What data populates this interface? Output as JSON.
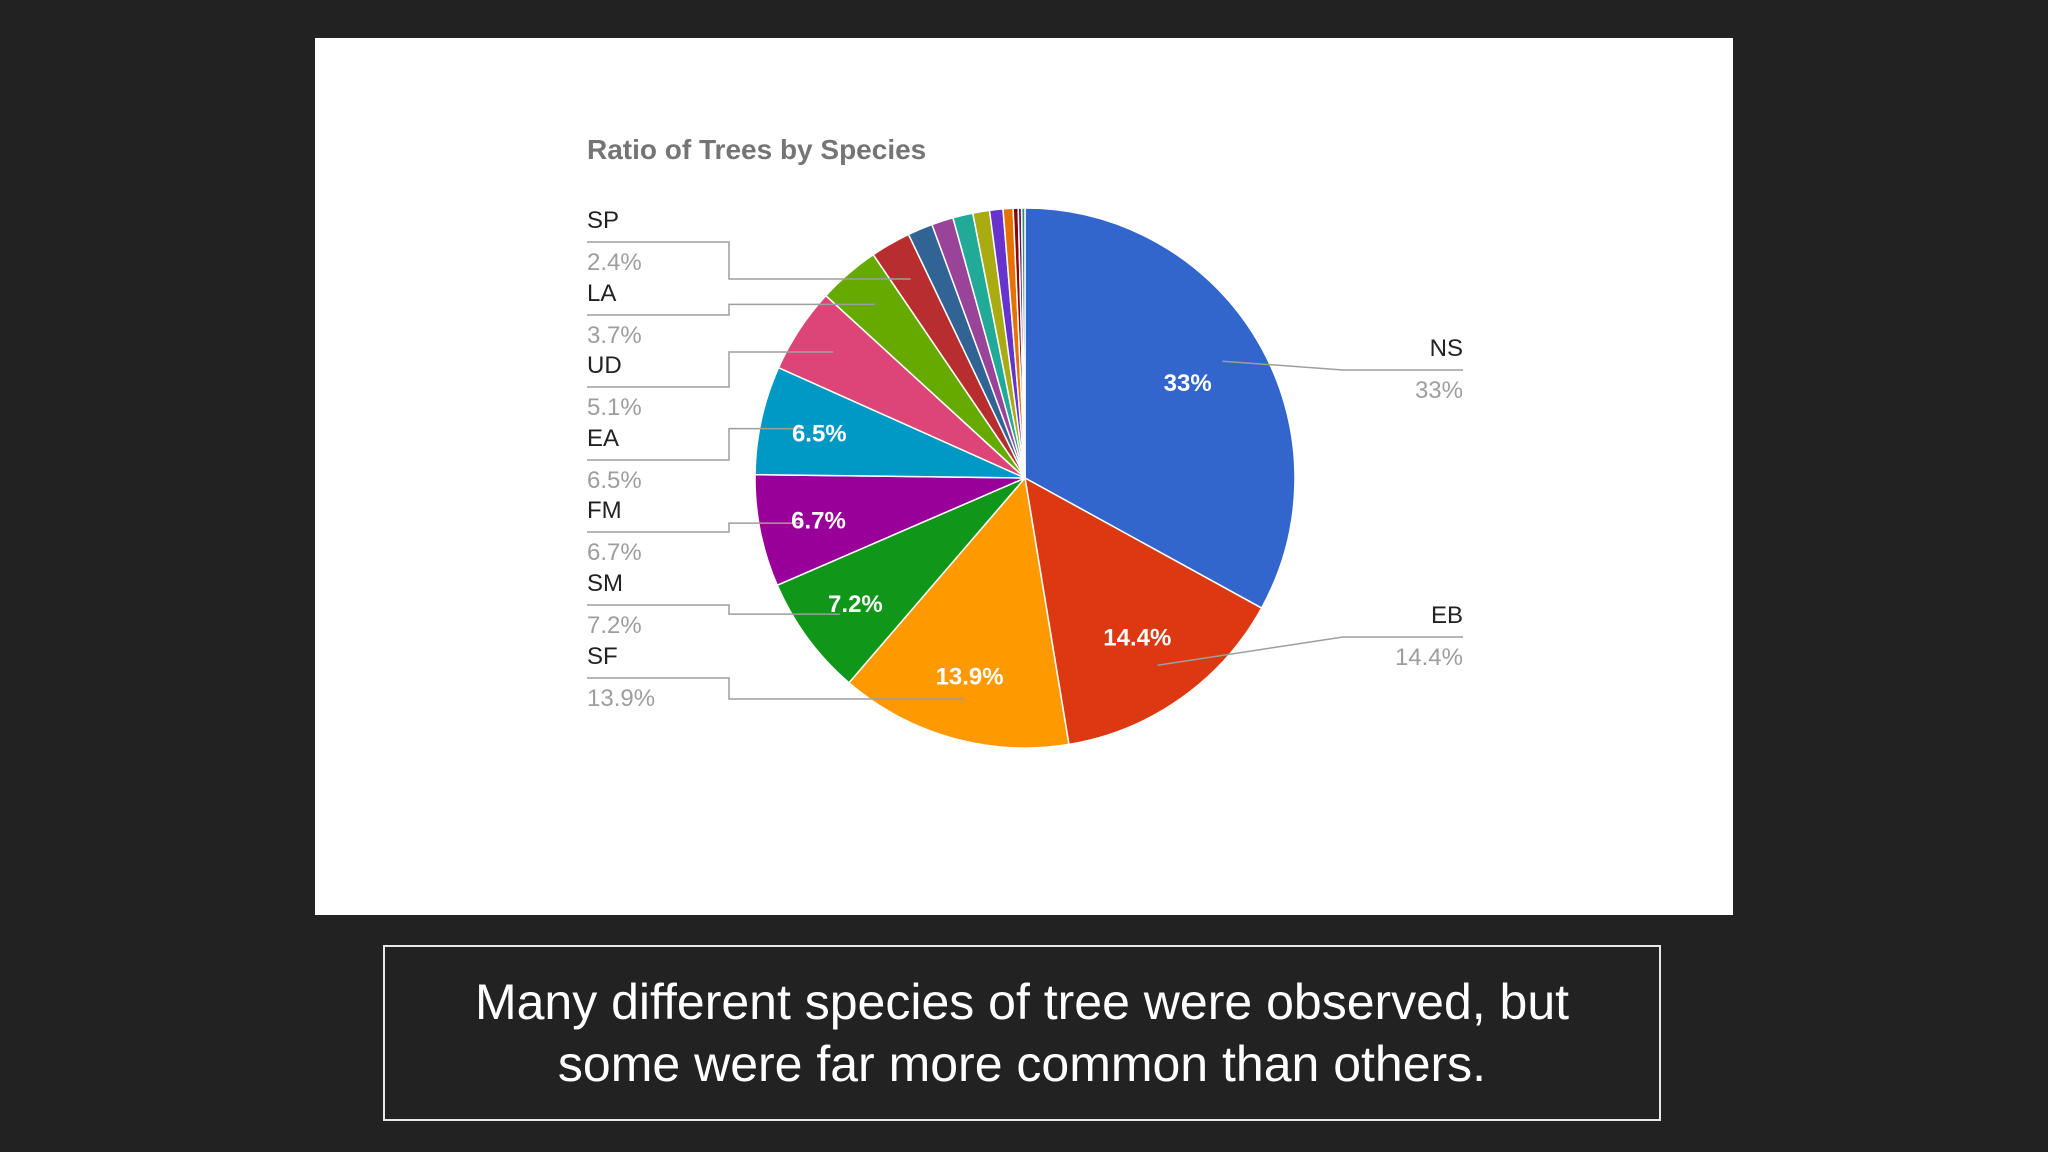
{
  "chart_data": {
    "type": "pie",
    "title": "Ratio of Trees by Species",
    "slices": [
      {
        "label": "NS",
        "value": 33.0,
        "display": "33%",
        "color": "#3366cc",
        "inside_label": "33%"
      },
      {
        "label": "EB",
        "value": 14.4,
        "display": "14.4%",
        "color": "#dc3912",
        "inside_label": "14.4%"
      },
      {
        "label": "SF",
        "value": 13.9,
        "display": "13.9%",
        "color": "#ff9900",
        "inside_label": "13.9%"
      },
      {
        "label": "SM",
        "value": 7.2,
        "display": "7.2%",
        "color": "#109618",
        "inside_label": "7.2%"
      },
      {
        "label": "FM",
        "value": 6.7,
        "display": "6.7%",
        "color": "#990099",
        "inside_label": "6.7%"
      },
      {
        "label": "EA",
        "value": 6.5,
        "display": "6.5%",
        "color": "#0099c6",
        "inside_label": "6.5%"
      },
      {
        "label": "UD",
        "value": 5.1,
        "display": "5.1%",
        "color": "#dd4477",
        "inside_label": ""
      },
      {
        "label": "LA",
        "value": 3.7,
        "display": "3.7%",
        "color": "#66aa00",
        "inside_label": ""
      },
      {
        "label": "SP",
        "value": 2.4,
        "display": "2.4%",
        "color": "#b82e2e",
        "inside_label": ""
      },
      {
        "label": "",
        "value": 1.5,
        "display": "",
        "color": "#316395",
        "inside_label": ""
      },
      {
        "label": "",
        "value": 1.3,
        "display": "",
        "color": "#994499",
        "inside_label": ""
      },
      {
        "label": "",
        "value": 1.2,
        "display": "",
        "color": "#22aa99",
        "inside_label": ""
      },
      {
        "label": "",
        "value": 1.0,
        "display": "",
        "color": "#aaaa11",
        "inside_label": ""
      },
      {
        "label": "",
        "value": 0.8,
        "display": "",
        "color": "#6633cc",
        "inside_label": ""
      },
      {
        "label": "",
        "value": 0.6,
        "display": "",
        "color": "#e67300",
        "inside_label": ""
      },
      {
        "label": "",
        "value": 0.3,
        "display": "",
        "color": "#8b0707",
        "inside_label": ""
      },
      {
        "label": "",
        "value": 0.2,
        "display": "",
        "color": "#651067",
        "inside_label": ""
      },
      {
        "label": "",
        "value": 0.2,
        "display": "",
        "color": "#329262",
        "inside_label": ""
      }
    ],
    "legend": "labeled leader lines"
  },
  "caption": {
    "text": "Many different species of tree were observed, but some were far more common than others."
  },
  "colors": {
    "background": "#222222",
    "panel": "#ffffff",
    "title_text": "#757575",
    "label_text": "#222222",
    "percent_text": "#9e9e9e",
    "leader_line": "#9e9e9e"
  }
}
